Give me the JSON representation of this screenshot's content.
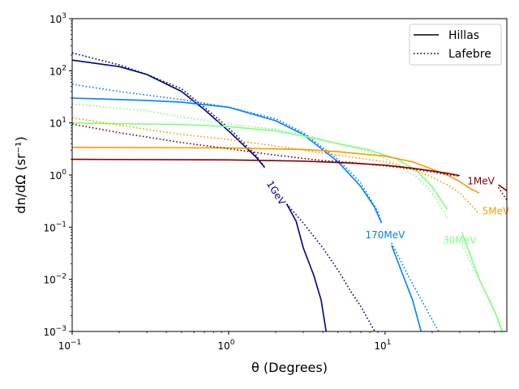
{
  "chart_data": {
    "type": "line",
    "title": "",
    "xlabel": "θ (Degrees)",
    "ylabel": "dn/dΩ (sr⁻¹)",
    "xscale": "log",
    "yscale": "log",
    "xlim": [
      0.1,
      60
    ],
    "ylim": [
      0.001,
      1000
    ],
    "x_ticks": [
      {
        "value": 0.1,
        "base": "10",
        "exp": "−1"
      },
      {
        "value": 1,
        "base": "10",
        "exp": "0"
      },
      {
        "value": 10,
        "base": "10",
        "exp": "1"
      }
    ],
    "y_ticks": [
      {
        "value": 0.001,
        "base": "10",
        "exp": "−3"
      },
      {
        "value": 0.01,
        "base": "10",
        "exp": "−2"
      },
      {
        "value": 0.1,
        "base": "10",
        "exp": "−1"
      },
      {
        "value": 1,
        "base": "10",
        "exp": "0"
      },
      {
        "value": 10,
        "base": "10",
        "exp": "1"
      },
      {
        "value": 100,
        "base": "10",
        "exp": "2"
      },
      {
        "value": 1000,
        "base": "10",
        "exp": "3"
      }
    ],
    "legend": {
      "position": "top-right",
      "entries": [
        {
          "label": "Hillas",
          "style": "solid"
        },
        {
          "label": "Lafebre",
          "style": "dotted"
        }
      ]
    },
    "series": [
      {
        "name": "1GeV",
        "color": "#000080",
        "label_at": {
          "x": 2.0,
          "y": 0.45,
          "rotation_deg": 58
        },
        "gap": [
          1.7,
          2.35
        ],
        "hillas": [
          [
            0.1,
            160
          ],
          [
            0.2,
            120
          ],
          [
            0.3,
            85
          ],
          [
            0.5,
            40
          ],
          [
            0.7,
            18
          ],
          [
            1.0,
            7
          ],
          [
            1.5,
            2.2
          ],
          [
            1.7,
            1.4
          ],
          [
            2.35,
            0.28
          ],
          [
            2.7,
            0.13
          ],
          [
            3.0,
            0.04
          ],
          [
            3.5,
            0.012
          ],
          [
            3.9,
            0.004
          ],
          [
            4.2,
            0.001
          ]
        ],
        "lafebre": [
          [
            0.1,
            220
          ],
          [
            0.2,
            130
          ],
          [
            0.3,
            85
          ],
          [
            0.5,
            45
          ],
          [
            0.7,
            20
          ],
          [
            1.0,
            8
          ],
          [
            1.5,
            2.4
          ],
          [
            1.7,
            1.4
          ],
          [
            2.35,
            0.28
          ],
          [
            3.0,
            0.12
          ],
          [
            4.0,
            0.04
          ],
          [
            5.0,
            0.015
          ],
          [
            6.0,
            0.006
          ],
          [
            7.0,
            0.003
          ],
          [
            8.6,
            0.001
          ]
        ]
      },
      {
        "name": "170MeV",
        "color": "#0080ff",
        "label_at": {
          "x": 10.0,
          "y": 0.07,
          "rotation_deg": 0
        },
        "gap": [
          9.5,
          11
        ],
        "hillas": [
          [
            0.1,
            30
          ],
          [
            0.3,
            27
          ],
          [
            0.5,
            25
          ],
          [
            1.0,
            20
          ],
          [
            2.0,
            11
          ],
          [
            3.0,
            6
          ],
          [
            5.0,
            1.8
          ],
          [
            7.0,
            0.6
          ],
          [
            8.5,
            0.25
          ],
          [
            9.5,
            0.12
          ],
          [
            11,
            0.045
          ],
          [
            13,
            0.012
          ],
          [
            15,
            0.004
          ],
          [
            17,
            0.001
          ]
        ],
        "lafebre": [
          [
            0.1,
            55
          ],
          [
            0.2,
            40
          ],
          [
            0.5,
            28
          ],
          [
            1.0,
            20
          ],
          [
            2.0,
            12
          ],
          [
            3.0,
            6.5
          ],
          [
            5.0,
            2.0
          ],
          [
            7.0,
            0.7
          ],
          [
            9.0,
            0.2
          ],
          [
            9.5,
            0.12
          ],
          [
            11,
            0.05
          ],
          [
            14,
            0.012
          ],
          [
            18,
            0.003
          ],
          [
            22,
            0.001
          ]
        ]
      },
      {
        "name": "30MeV",
        "color": "#80ff80",
        "label_at": {
          "x": 30.0,
          "y": 0.055,
          "rotation_deg": 0
        },
        "gap": [
          25,
          31
        ],
        "hillas": [
          [
            0.1,
            10
          ],
          [
            0.5,
            9.3
          ],
          [
            1.0,
            8.5
          ],
          [
            2.0,
            7.0
          ],
          [
            3.0,
            5.6
          ],
          [
            5.0,
            4.0
          ],
          [
            8.0,
            3.0
          ],
          [
            12,
            2.0
          ],
          [
            16,
            1.2
          ],
          [
            20,
            0.6
          ],
          [
            25,
            0.22
          ],
          [
            31,
            0.08
          ],
          [
            40,
            0.01
          ],
          [
            50,
            0.0025
          ],
          [
            56,
            0.001
          ]
        ],
        "lafebre": [
          [
            0.1,
            23
          ],
          [
            0.3,
            17
          ],
          [
            0.5,
            13
          ],
          [
            1.0,
            9.5
          ],
          [
            2.0,
            7.5
          ],
          [
            3.0,
            6.0
          ],
          [
            5.0,
            4.0
          ],
          [
            8.0,
            2.8
          ],
          [
            12,
            1.6
          ],
          [
            16,
            0.9
          ],
          [
            20,
            0.45
          ],
          [
            25,
            0.15
          ],
          [
            31,
            0.045
          ],
          [
            40,
            0.01
          ],
          [
            56,
            0.0012
          ]
        ]
      },
      {
        "name": "5MeV",
        "color": "#ff9900",
        "label_at": {
          "x": 51.0,
          "y": 0.2,
          "rotation_deg": 0
        },
        "gap": [
          40,
          60
        ],
        "hillas": [
          [
            0.1,
            3.4
          ],
          [
            1.0,
            3.3
          ],
          [
            3.0,
            3.1
          ],
          [
            5.0,
            2.8
          ],
          [
            10,
            2.3
          ],
          [
            15,
            1.8
          ],
          [
            20,
            1.3
          ],
          [
            25,
            1.0
          ],
          [
            30,
            0.75
          ],
          [
            35,
            0.55
          ],
          [
            40,
            0.45
          ],
          [
            45,
            0.3
          ],
          [
            50,
            0.22
          ],
          [
            55,
            0.14
          ],
          [
            60,
            0.09
          ]
        ],
        "lafebre": [
          [
            0.1,
            12.5
          ],
          [
            0.3,
            7.5
          ],
          [
            0.5,
            6.0
          ],
          [
            1.0,
            4.8
          ],
          [
            2.0,
            3.6
          ],
          [
            3.0,
            3.0
          ],
          [
            5.0,
            2.4
          ],
          [
            10,
            1.8
          ],
          [
            15,
            1.3
          ],
          [
            20,
            0.9
          ],
          [
            25,
            0.65
          ],
          [
            30,
            0.45
          ],
          [
            35,
            0.28
          ],
          [
            40,
            0.18
          ],
          [
            50,
            0.07
          ],
          [
            60,
            0.04
          ]
        ]
      },
      {
        "name": "1MeV",
        "color": "#800000",
        "label_at": {
          "x": 41.0,
          "y": 0.75,
          "rotation_deg": 0
        },
        "gap": [
          30,
          53
        ],
        "hillas": [
          [
            0.1,
            2.0
          ],
          [
            1.0,
            1.95
          ],
          [
            3.0,
            1.85
          ],
          [
            6.0,
            1.7
          ],
          [
            10,
            1.55
          ],
          [
            15,
            1.35
          ],
          [
            20,
            1.2
          ],
          [
            25,
            1.08
          ],
          [
            30,
            0.98
          ],
          [
            53,
            0.65
          ],
          [
            60,
            0.5
          ]
        ],
        "lafebre": [
          [
            0.1,
            9.5
          ],
          [
            0.2,
            6.5
          ],
          [
            0.5,
            4.2
          ],
          [
            1.0,
            3.2
          ],
          [
            2.0,
            2.4
          ],
          [
            4.0,
            1.9
          ],
          [
            6.0,
            1.75
          ],
          [
            10,
            1.5
          ],
          [
            15,
            1.3
          ],
          [
            20,
            1.15
          ],
          [
            25,
            1.02
          ],
          [
            30,
            0.95
          ],
          [
            53,
            0.58
          ],
          [
            60,
            0.33
          ]
        ]
      }
    ]
  }
}
